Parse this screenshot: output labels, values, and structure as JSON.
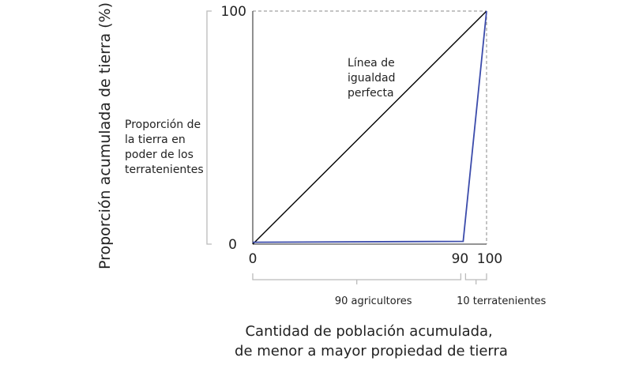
{
  "chart_data": {
    "type": "line",
    "title": "",
    "ylabel": "Proporción acumulada de tierra (%)",
    "xlabel_lines": [
      "Cantidad de población acumulada,",
      "de menor a mayor propiedad de tierra"
    ],
    "xlim": [
      0,
      100
    ],
    "ylim": [
      0,
      100
    ],
    "x_ticks": [
      "0",
      "90",
      "100"
    ],
    "y_ticks": [
      "0",
      "100"
    ],
    "grid": false,
    "series": [
      {
        "name": "",
        "color": "#000000",
        "points": [
          [
            0,
            0
          ],
          [
            100,
            100
          ]
        ]
      },
      {
        "name": "",
        "color": "#3b4bab",
        "points": [
          [
            0,
            0.8
          ],
          [
            90,
            1.2
          ],
          [
            100,
            100
          ]
        ]
      }
    ],
    "annotations": {
      "equality_line": [
        "Línea de",
        "igualdad",
        "perfecta"
      ],
      "landowner_share": [
        "Proporción de",
        "la tierra en",
        "poder de los",
        "terratenientes"
      ]
    },
    "groups": [
      {
        "label": "90 agricultores",
        "from": 0,
        "to": 90
      },
      {
        "label": "10 terratenientes",
        "from": 90,
        "to": 100
      }
    ]
  }
}
